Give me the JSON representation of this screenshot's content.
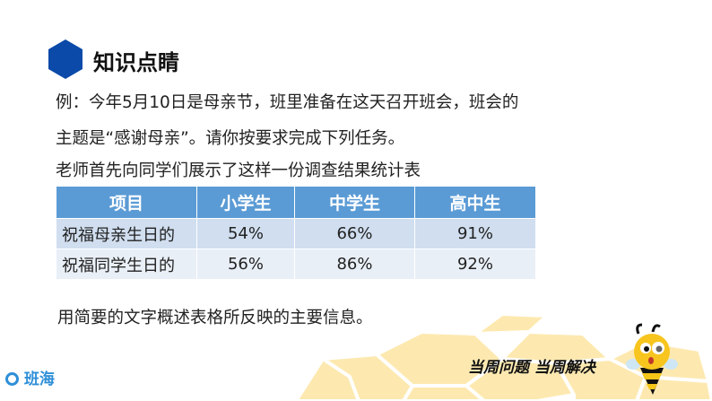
{
  "section_title": "知识点睛",
  "lines": [
    "例：今年5月10日是母亲节，班里准备在这天召开班会，班会的",
    "主题是“感谢母亲”。请你按要求完成下列任务。",
    "老师首先向同学们展示了这样一份调查结果统计表"
  ],
  "table": {
    "headers": [
      "项目",
      "小学生",
      "中学生",
      "高中生"
    ],
    "rows": [
      [
        "祝福母亲生日的",
        "54%",
        "66%",
        "91%"
      ],
      [
        "祝福同学生日的",
        "56%",
        "86%",
        "92%"
      ]
    ]
  },
  "question": "用简要的文字概述表格所反映的主要信息。",
  "slogan": "当周问题 当周解决",
  "logo": "班海",
  "colors": {
    "accent": "#0b4aa8",
    "table_header": "#5b9bd5",
    "honeycomb": "#fbe29a"
  }
}
